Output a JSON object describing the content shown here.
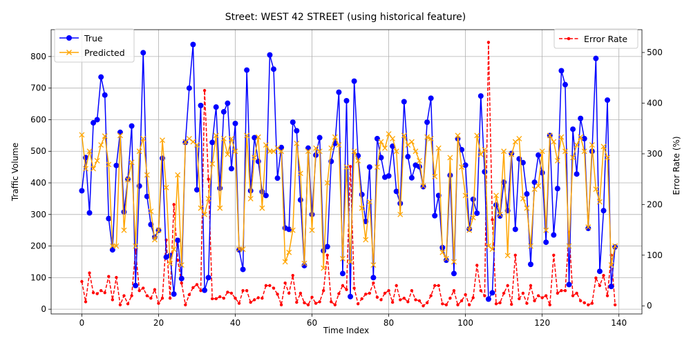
{
  "chart_data": {
    "type": "line",
    "title": "Street: WEST 42 STREET (using historical feature)",
    "xlabel": "Time Index",
    "ylabel": "Traffic Volume",
    "ylabel_right": "Error Rate (%)",
    "xlim": [
      -8,
      146
    ],
    "ylim": [
      -15,
      885
    ],
    "ylim_right": [
      -16,
      545
    ],
    "x_ticks": [
      0,
      20,
      40,
      60,
      80,
      100,
      120,
      140
    ],
    "y_ticks": [
      0,
      100,
      200,
      300,
      400,
      500,
      600,
      700,
      800
    ],
    "y_ticks_right": [
      0,
      100,
      200,
      300,
      400,
      500
    ],
    "grid": true,
    "legend_left": "top-left",
    "legend_right": "top-right",
    "colors": {
      "true": "#0000ff",
      "predicted": "#ffa500",
      "error": "#ff0000"
    },
    "series": [
      {
        "name": "True",
        "axis": "left",
        "marker": "circle",
        "style": "solid",
        "values": [
          375,
          480,
          305,
          590,
          600,
          735,
          678,
          287,
          188,
          455,
          560,
          308,
          412,
          580,
          75,
          390,
          812,
          357,
          268,
          228,
          250,
          478,
          165,
          170,
          48,
          218,
          97,
          528,
          700,
          838,
          378,
          645,
          60,
          100,
          528,
          640,
          383,
          625,
          652,
          445,
          588,
          188,
          126,
          757,
          375,
          543,
          468,
          372,
          360,
          805,
          760,
          415,
          512,
          257,
          253,
          592,
          565,
          346,
          138,
          510,
          300,
          488,
          543,
          185,
          198,
          468,
          525,
          687,
          113,
          660,
          40,
          722,
          486,
          363,
          278,
          450,
          100,
          540,
          480,
          418,
          422,
          516,
          373,
          335,
          657,
          483,
          416,
          456,
          451,
          388,
          592,
          668,
          296,
          360,
          195,
          155,
          424,
          113,
          540,
          505,
          456,
          254,
          348,
          304,
          675,
          435,
          32,
          52,
          330,
          295,
          402,
          312,
          493,
          253,
          476,
          464,
          365,
          142,
          402,
          488,
          432,
          212,
          550,
          235,
          382,
          755,
          711,
          78,
          570,
          428,
          604,
          540,
          256,
          500,
          794,
          120,
          312,
          662,
          72,
          197
        ]
      },
      {
        "name": "Predicted",
        "axis": "left",
        "marker": "x",
        "style": "solid",
        "values": [
          552,
          445,
          500,
          445,
          470,
          520,
          548,
          458,
          200,
          200,
          550,
          250,
          410,
          465,
          200,
          500,
          540,
          425,
          310,
          220,
          250,
          535,
          385,
          145,
          190,
          425,
          140,
          530,
          540,
          530,
          520,
          320,
          300,
          350,
          460,
          550,
          320,
          540,
          490,
          540,
          500,
          190,
          190,
          550,
          350,
          480,
          545,
          320,
          520,
          500,
          500,
          510,
          500,
          150,
          180,
          250,
          525,
          430,
          145,
          500,
          250,
          510,
          500,
          130,
          400,
          510,
          545,
          520,
          160,
          450,
          150,
          500,
          470,
          320,
          220,
          340,
          140,
          450,
          530,
          510,
          555,
          540,
          500,
          300,
          550,
          520,
          530,
          500,
          470,
          390,
          545,
          540,
          420,
          510,
          180,
          160,
          480,
          150,
          550,
          450,
          360,
          250,
          290,
          550,
          490,
          505,
          200,
          190,
          360,
          300,
          500,
          170,
          490,
          530,
          540,
          350,
          320,
          200,
          380,
          390,
          500,
          250,
          550,
          530,
          470,
          545,
          500,
          200,
          480,
          520,
          545,
          500,
          260,
          520,
          380,
          340,
          515,
          480,
          140,
          200
        ]
      },
      {
        "name": "Error Rate",
        "axis": "right",
        "marker": "dot",
        "style": "dashed",
        "values": [
          48,
          8,
          65,
          26,
          24,
          30,
          26,
          58,
          12,
          56,
          2,
          20,
          4,
          20,
          110,
          30,
          35,
          20,
          15,
          32,
          5,
          15,
          130,
          15,
          200,
          90,
          45,
          2,
          22,
          36,
          42,
          30,
          425,
          250,
          14,
          14,
          18,
          15,
          27,
          25,
          15,
          5,
          30,
          30,
          7,
          12,
          16,
          15,
          40,
          40,
          35,
          23,
          2,
          45,
          25,
          60,
          7,
          25,
          6,
          2,
          17,
          5,
          8,
          30,
          100,
          8,
          2,
          24,
          40,
          32,
          275,
          35,
          4,
          14,
          23,
          25,
          45,
          17,
          12,
          25,
          30,
          7,
          40,
          12,
          15,
          8,
          30,
          12,
          10,
          0,
          6,
          20,
          40,
          40,
          4,
          2,
          15,
          30,
          2,
          10,
          22,
          2,
          16,
          80,
          30,
          20,
          520,
          170,
          4,
          6,
          25,
          40,
          3,
          100,
          14,
          25,
          5,
          40,
          10,
          20,
          16,
          20,
          2,
          100,
          25,
          30,
          30,
          145,
          20,
          25,
          10,
          6,
          2,
          5,
          55,
          40,
          60,
          20,
          100,
          2
        ]
      }
    ]
  }
}
